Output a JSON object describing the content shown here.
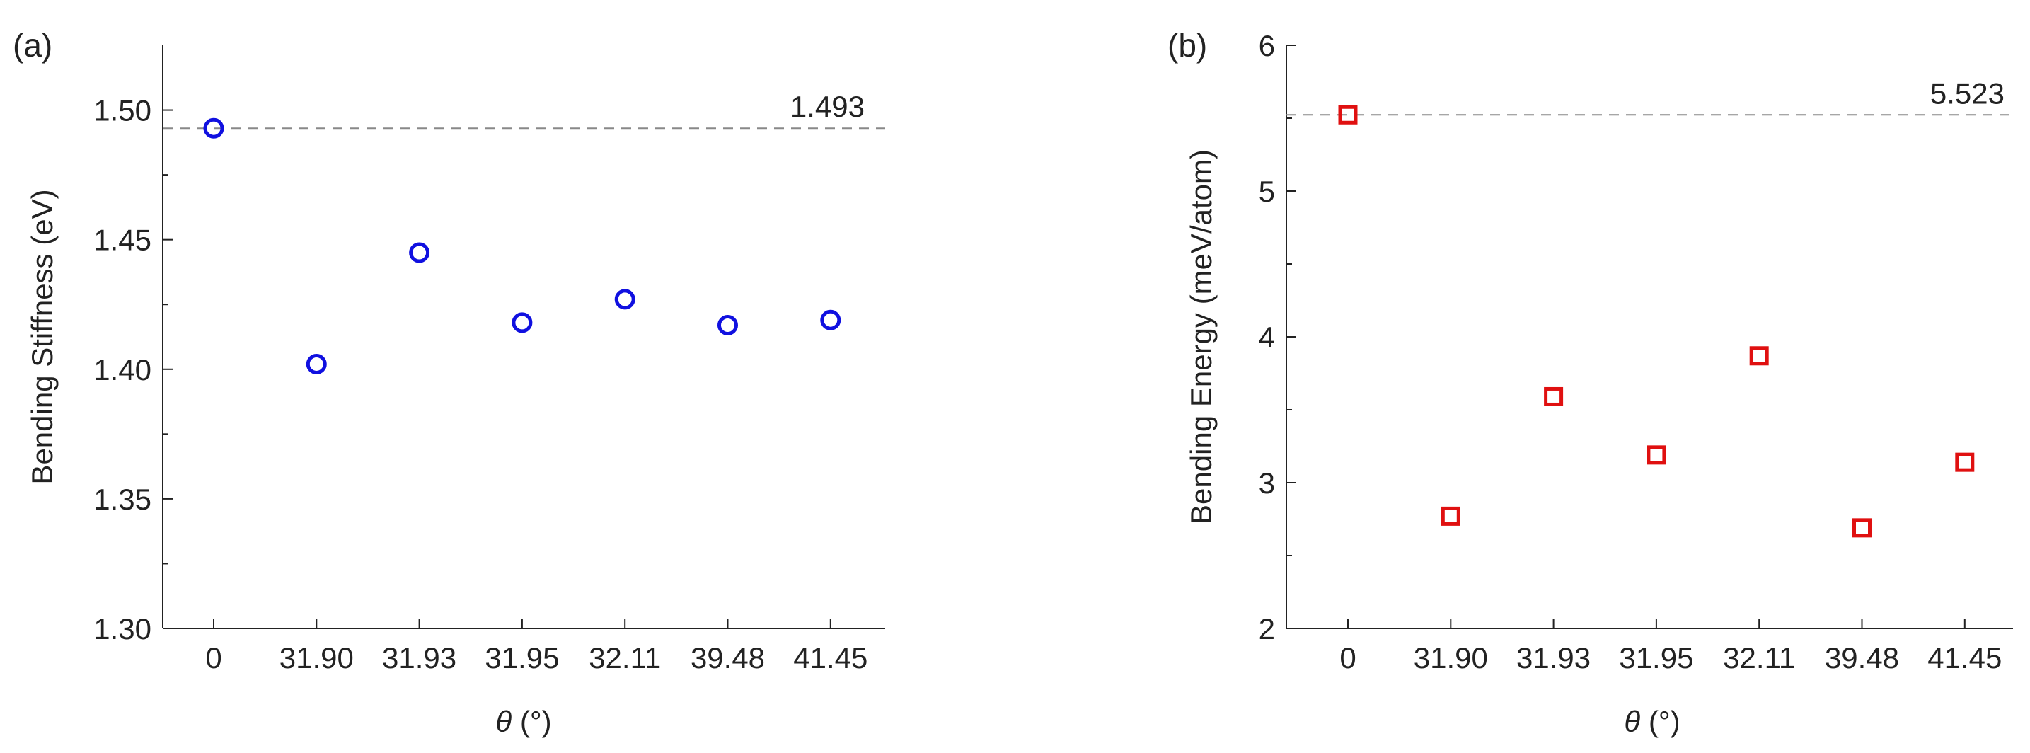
{
  "chart_data": [
    {
      "panel": "(a)",
      "type": "scatter",
      "categories": [
        "0",
        "31.90",
        "31.93",
        "31.95",
        "32.11",
        "39.48",
        "41.45"
      ],
      "values": [
        1.493,
        1.402,
        1.445,
        1.418,
        1.427,
        1.417,
        1.419
      ],
      "xlabel_symbol": "θ",
      "xlabel_unit": " (°)",
      "ylabel": "Bending Stiffness (eV)",
      "ylim": [
        1.3,
        1.525
      ],
      "yticks": [
        "1.30",
        "1.35",
        "1.40",
        "1.45",
        "1.50"
      ],
      "reference_line": {
        "value": 1.493,
        "label": "1.493"
      },
      "marker": "open-circle",
      "color": "#1010e0"
    },
    {
      "panel": "(b)",
      "type": "scatter",
      "categories": [
        "0",
        "31.90",
        "31.93",
        "31.95",
        "32.11",
        "39.48",
        "41.45"
      ],
      "values": [
        5.523,
        2.77,
        3.59,
        3.19,
        3.87,
        2.69,
        3.14
      ],
      "xlabel_symbol": "θ",
      "xlabel_unit": " (°)",
      "ylabel": "Bending Energy (meV/atom)",
      "ylim": [
        2,
        6
      ],
      "yticks": [
        "2",
        "3",
        "4",
        "5",
        "6"
      ],
      "reference_line": {
        "value": 5.523,
        "label": "5.523"
      },
      "marker": "open-square",
      "color": "#e01010"
    }
  ]
}
